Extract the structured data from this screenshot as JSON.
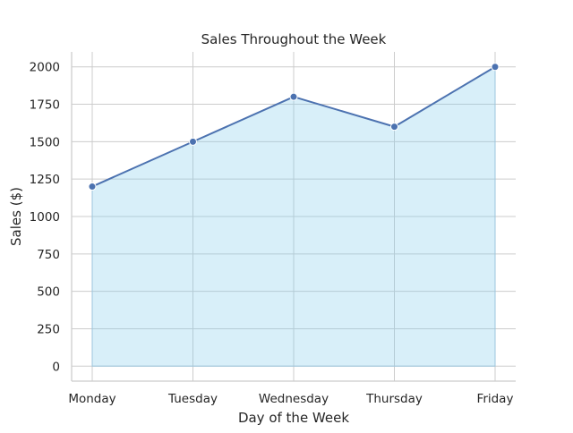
{
  "chart_data": {
    "type": "area",
    "title": "Sales Throughout the Week",
    "xlabel": "Day of the Week",
    "ylabel": "Sales ($)",
    "categories": [
      "Monday",
      "Tuesday",
      "Wednesday",
      "Thursday",
      "Friday"
    ],
    "series": [
      {
        "values": [
          1200,
          1500,
          1800,
          1600,
          2000
        ]
      }
    ],
    "ylim": [
      -100,
      2100
    ],
    "yticks": [
      0,
      250,
      500,
      750,
      1000,
      1250,
      1500,
      1750,
      2000
    ],
    "grid": true,
    "line_color": "#4c72b0",
    "fill_color": "#87ceeb",
    "fill_opacity": 0.32,
    "grid_color": "#cccccc"
  }
}
